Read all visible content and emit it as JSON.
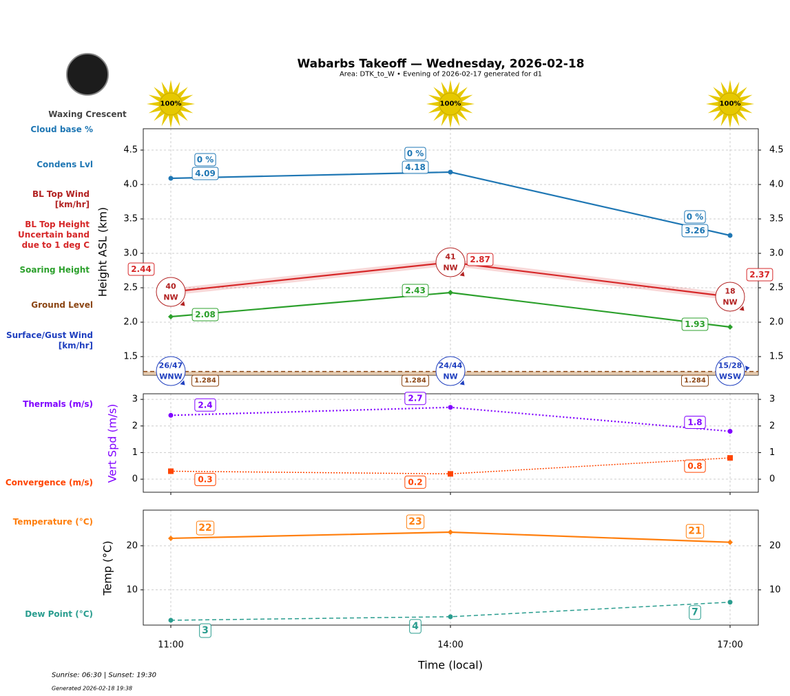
{
  "title": "Wabarbs Takeoff — Wednesday, 2026-02-18",
  "subtitle": "Area: DTK_to_W • Evening of 2026-02-17 generated for d1",
  "moon_phase": "Waxing Crescent",
  "footer": {
    "sun": "Sunrise: 06:30 | Sunset: 19:30",
    "generated": "Generated 2026-02-18 19:38"
  },
  "colors": {
    "condens": "#1f77b4",
    "bl_wind": "#b22222",
    "bl_top": "#d62728",
    "soaring": "#2ca02c",
    "ground": "#8b4513",
    "surface": "#1f3fbf",
    "thermals": "#8000ff",
    "convergence": "#ff4500",
    "temp": "#ff7f0e",
    "dew": "#2a9d8f",
    "sun": "#e6c800"
  },
  "side_labels": {
    "cloud": "Cloud base %",
    "condens": "Condens Lvl",
    "bl_wind": [
      "BL Top Wind",
      "[km/hr]"
    ],
    "bl_top": [
      "BL Top Height",
      "Uncertain band",
      "due to 1 deg C"
    ],
    "soaring": "Soaring Height",
    "ground": "Ground Level",
    "surface": [
      "Surface/Gust Wind",
      "[km/hr]"
    ],
    "thermals": "Thermals (m/s)",
    "convergence": "Convergence (m/s)",
    "temp": "Temperature (°C)",
    "dew": "Dew Point (°C)"
  },
  "chart_data": [
    {
      "type": "line",
      "ylabel": "Height ASL (km)",
      "xlabel": "Time (local)",
      "categories": [
        "11:00",
        "14:00",
        "17:00"
      ],
      "ylim": [
        1.23,
        4.81
      ],
      "yticks": [
        "1.5",
        "2.0",
        "2.5",
        "3.0",
        "3.5",
        "4.0",
        "4.5"
      ],
      "grid": true,
      "sun_percent": [
        "100%",
        "100%",
        "100%"
      ],
      "series": [
        {
          "key": "condens",
          "values": [
            4.09,
            4.18,
            3.26
          ],
          "labels": [
            "4.09",
            "4.18",
            "3.26"
          ],
          "cloud_base": [
            "0 %",
            "0 %",
            "0 %"
          ]
        },
        {
          "key": "bl_top",
          "values": [
            2.44,
            2.87,
            2.37
          ],
          "labels": [
            "2.44",
            "2.87",
            "2.37"
          ],
          "uncertainty": 0.05
        },
        {
          "key": "soaring",
          "values": [
            2.08,
            2.43,
            1.93
          ],
          "labels": [
            "2.08",
            "2.43",
            "1.93"
          ]
        },
        {
          "key": "ground",
          "values": [
            1.284,
            1.284,
            1.284
          ],
          "labels": [
            "1.284",
            "1.284",
            "1.284"
          ]
        }
      ],
      "bl_wind": [
        {
          "speed": "40",
          "dir": "NW"
        },
        {
          "speed": "41",
          "dir": "NW"
        },
        {
          "speed": "18",
          "dir": "NW"
        }
      ],
      "surface_wind": [
        {
          "speed": "26/47",
          "dir": "WNW"
        },
        {
          "speed": "24/44",
          "dir": "NW"
        },
        {
          "speed": "15/28",
          "dir": "WSW"
        }
      ]
    },
    {
      "type": "line",
      "ylabel": "Vert Spd (m/s)",
      "categories": [
        "11:00",
        "14:00",
        "17:00"
      ],
      "ylim": [
        -0.49,
        3.21
      ],
      "yticks": [
        "0",
        "1",
        "2",
        "3"
      ],
      "grid": true,
      "series": [
        {
          "key": "thermals",
          "values": [
            2.4,
            2.7,
            1.8
          ],
          "labels": [
            "2.4",
            "2.7",
            "1.8"
          ]
        },
        {
          "key": "convergence",
          "values": [
            0.3,
            0.2,
            0.8
          ],
          "labels": [
            "0.3",
            "0.2",
            "0.8"
          ]
        }
      ]
    },
    {
      "type": "line",
      "ylabel": "Temp (°C)",
      "categories": [
        "11:00",
        "14:00",
        "17:00"
      ],
      "ylim": [
        2.0,
        28.1
      ],
      "yticks": [
        "10",
        "20"
      ],
      "grid": true,
      "series": [
        {
          "key": "temp",
          "values": [
            21.7,
            23.1,
            20.8
          ],
          "labels": [
            "22",
            "23",
            "21"
          ]
        },
        {
          "key": "dew",
          "values": [
            3.1,
            3.9,
            7.2
          ],
          "labels": [
            "3",
            "4",
            "7"
          ]
        }
      ]
    }
  ]
}
